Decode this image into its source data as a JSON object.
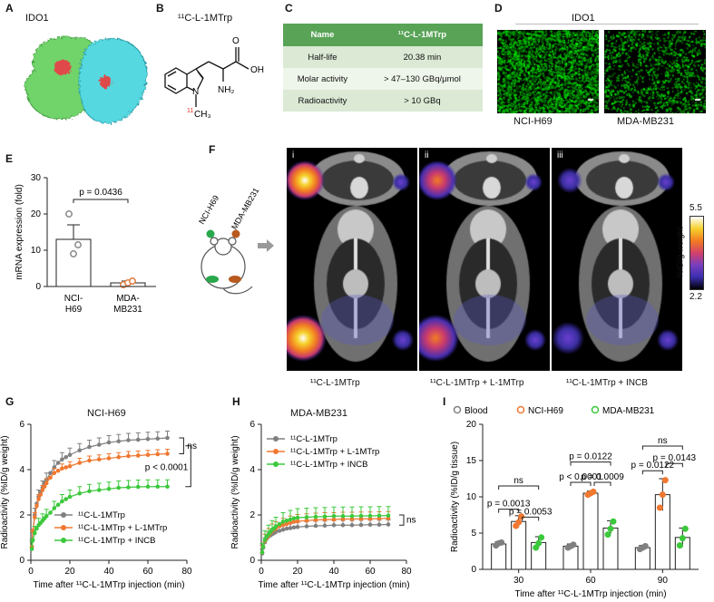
{
  "panels": {
    "A": {
      "label": "A",
      "title": "IDO1"
    },
    "B": {
      "label": "B",
      "title": "¹¹C-L-1MTrp",
      "atom_labels": {
        "oh": "OH",
        "o": "O",
        "nh2": "NH₂",
        "n": "N",
        "ch3": "CH₃",
        "isotope": "11"
      }
    },
    "C": {
      "label": "C",
      "table": {
        "headers": [
          "Name",
          "¹¹C-L-1MTrp"
        ],
        "rows": [
          [
            "Half-life",
            "20.38 min"
          ],
          [
            "Molar activity",
            "> 47–130 GBq/μmol"
          ],
          [
            "Radioactivity",
            "> 10 GBq"
          ]
        ]
      }
    },
    "D": {
      "label": "D",
      "title": "IDO1",
      "captions": [
        "NCI-H69",
        "MDA-MB231"
      ]
    },
    "E": {
      "label": "E",
      "pvalue": "p = 0.0436"
    },
    "F": {
      "label": "F",
      "roman": [
        "i",
        "ii",
        "iii"
      ],
      "captions": [
        "¹¹C-L-1MTrp",
        "¹¹C-L-1MTrp + L-1MTrp",
        "¹¹C-L-1MTrp + INCB"
      ],
      "mouse_labels": [
        "NCI-H69",
        "MDA-MB231"
      ],
      "colorbar": {
        "max": "5.5",
        "min": "2.2",
        "label": "%ID/g weight",
        "colors": [
          "#000000",
          "#3b2fb0",
          "#7a3fbf",
          "#d4416b",
          "#f27c22",
          "#f6d12c",
          "#ffffff"
        ]
      }
    },
    "G": {
      "label": "G",
      "title": "NCI-H69",
      "ns": "ns",
      "p": "p < 0.0001"
    },
    "H": {
      "label": "H",
      "title": "MDA-MB231",
      "ns": "ns"
    },
    "I": {
      "label": "I",
      "brackets": {
        "ns_30": "ns",
        "p30a": "p = 0.0013",
        "p30b": "p = 0.0053",
        "p60top": "p = 0.0122",
        "p60a": "p < 0.0001",
        "p60b": "p = 0.0009",
        "ns_90": "ns",
        "p90top": "p = 0.0143",
        "p90a": "p = 0.0122"
      }
    }
  },
  "chart_data": [
    {
      "id": "E",
      "type": "bar",
      "categories": [
        "NCI-H69",
        "MDA-MB231"
      ],
      "tick_labels": [
        [
          "NCI-",
          "H69"
        ],
        [
          "MDA-",
          "MB231"
        ]
      ],
      "values": [
        13,
        1
      ],
      "errors": [
        4,
        0.5
      ],
      "points": [
        [
          20,
          9,
          11.5
        ],
        [
          0.5,
          1,
          1.5
        ]
      ],
      "ylabel": "mRNA expression (fold)",
      "ylim": [
        0,
        30
      ],
      "yticks": [
        0,
        10,
        20,
        30
      ],
      "colors": [
        "#888888",
        "#e07b3a"
      ]
    },
    {
      "id": "G",
      "type": "line",
      "xlabel": "Time after ¹¹C-L-1MTrp injection (min)",
      "ylabel": "Radioactivity (%ID/g weight)",
      "xlim": [
        0,
        80
      ],
      "ylim": [
        0,
        6
      ],
      "xticks": [
        0,
        20,
        40,
        60,
        80
      ],
      "yticks": [
        0,
        2,
        4,
        6
      ],
      "x": [
        0.5,
        1,
        2,
        3,
        4,
        5,
        6,
        7,
        8,
        10,
        12,
        14,
        16,
        18,
        20,
        25,
        30,
        35,
        40,
        45,
        50,
        55,
        60,
        65,
        70
      ],
      "series": [
        {
          "name": "¹¹C-L-1MTrp",
          "color": "#808080",
          "err": 0.3,
          "values": [
            0.6,
            1.3,
            2.0,
            2.5,
            2.8,
            3.0,
            3.2,
            3.4,
            3.55,
            3.85,
            4.1,
            4.3,
            4.45,
            4.55,
            4.65,
            4.85,
            5.0,
            5.1,
            5.2,
            5.25,
            5.3,
            5.32,
            5.35,
            5.37,
            5.4
          ]
        },
        {
          "name": "¹¹C-L-1MTrp + L-1MTrp",
          "color": "#f07830",
          "err": 0.2,
          "values": [
            0.6,
            1.3,
            1.9,
            2.4,
            2.7,
            2.9,
            3.1,
            3.25,
            3.4,
            3.65,
            3.85,
            3.95,
            4.05,
            4.1,
            4.15,
            4.3,
            4.4,
            4.45,
            4.5,
            4.55,
            4.6,
            4.62,
            4.65,
            4.68,
            4.7
          ]
        },
        {
          "name": "¹¹C-L-1MTrp + INCB",
          "color": "#3cc83c",
          "err": 0.3,
          "values": [
            0.5,
            0.9,
            1.2,
            1.4,
            1.55,
            1.65,
            1.75,
            1.85,
            1.95,
            2.1,
            2.3,
            2.45,
            2.6,
            2.7,
            2.8,
            2.95,
            3.05,
            3.1,
            3.15,
            3.2,
            3.22,
            3.24,
            3.25,
            3.25,
            3.25
          ]
        }
      ]
    },
    {
      "id": "H",
      "type": "line",
      "xlabel": "Time after ¹¹C-L-1MTrp injection (min)",
      "ylabel": "Radioactivity (%ID/g weight)",
      "xlim": [
        0,
        80
      ],
      "ylim": [
        0,
        6
      ],
      "xticks": [
        0,
        20,
        40,
        60,
        80
      ],
      "yticks": [
        0,
        2,
        4,
        6
      ],
      "x": [
        0.5,
        1,
        2,
        3,
        4,
        5,
        6,
        7,
        8,
        10,
        12,
        14,
        16,
        18,
        20,
        25,
        30,
        35,
        40,
        45,
        50,
        55,
        60,
        65,
        70
      ],
      "series": [
        {
          "name": "¹¹C-L-1MTrp",
          "color": "#808080",
          "err": 0.2,
          "values": [
            0.3,
            0.55,
            0.8,
            0.95,
            1.05,
            1.1,
            1.15,
            1.2,
            1.25,
            1.3,
            1.35,
            1.4,
            1.42,
            1.45,
            1.47,
            1.5,
            1.52,
            1.53,
            1.55,
            1.55,
            1.55,
            1.56,
            1.57,
            1.57,
            1.58
          ]
        },
        {
          "name": "¹¹C-L-1MTrp + L-1MTrp",
          "color": "#f07830",
          "err": 0.3,
          "values": [
            0.35,
            0.6,
            0.85,
            1.0,
            1.1,
            1.2,
            1.3,
            1.35,
            1.4,
            1.5,
            1.55,
            1.6,
            1.65,
            1.7,
            1.72,
            1.75,
            1.78,
            1.8,
            1.8,
            1.82,
            1.82,
            1.83,
            1.83,
            1.84,
            1.85
          ]
        },
        {
          "name": "¹¹C-L-1MTrp + INCB",
          "color": "#3cc83c",
          "err": 0.4,
          "values": [
            0.35,
            0.6,
            0.9,
            1.05,
            1.15,
            1.25,
            1.35,
            1.4,
            1.5,
            1.6,
            1.7,
            1.75,
            1.8,
            1.85,
            1.88,
            1.9,
            1.92,
            1.93,
            1.95,
            1.95,
            1.95,
            1.96,
            1.96,
            1.97,
            1.97
          ]
        }
      ]
    },
    {
      "id": "I",
      "type": "bar",
      "categories": [
        "30",
        "60",
        "90"
      ],
      "xlabel": "Time after ¹¹C-L-1MTrp injection (min)",
      "ylabel": "Radioactivity (%ID/g tissue)",
      "ylim": [
        0,
        20
      ],
      "yticks": [
        0,
        5,
        10,
        15,
        20
      ],
      "series": [
        {
          "name": "Blood",
          "color": "#808080",
          "values": [
            3.5,
            3.2,
            3.0
          ],
          "errors": [
            0.3,
            0.3,
            0.3
          ],
          "points": [
            [
              3.3,
              3.6,
              3.7
            ],
            [
              3.0,
              3.2,
              3.4
            ],
            [
              2.8,
              3.0,
              3.2
            ]
          ]
        },
        {
          "name": "NCI-H69",
          "color": "#f07830",
          "values": [
            6.6,
            10.5,
            10.3
          ],
          "errors": [
            0.8,
            0.3,
            2.2
          ],
          "points": [
            [
              6.0,
              6.5,
              7.3
            ],
            [
              10.3,
              10.5,
              10.7
            ],
            [
              8.5,
              10.3,
              12.3
            ]
          ]
        },
        {
          "name": "MDA-MB231",
          "color": "#3cc83c",
          "values": [
            3.7,
            5.7,
            4.4
          ],
          "errors": [
            0.8,
            1.0,
            1.3
          ],
          "points": [
            [
              3.0,
              3.6,
              4.4
            ],
            [
              4.8,
              5.6,
              6.6
            ],
            [
              3.3,
              4.3,
              5.6
            ]
          ]
        }
      ]
    }
  ]
}
